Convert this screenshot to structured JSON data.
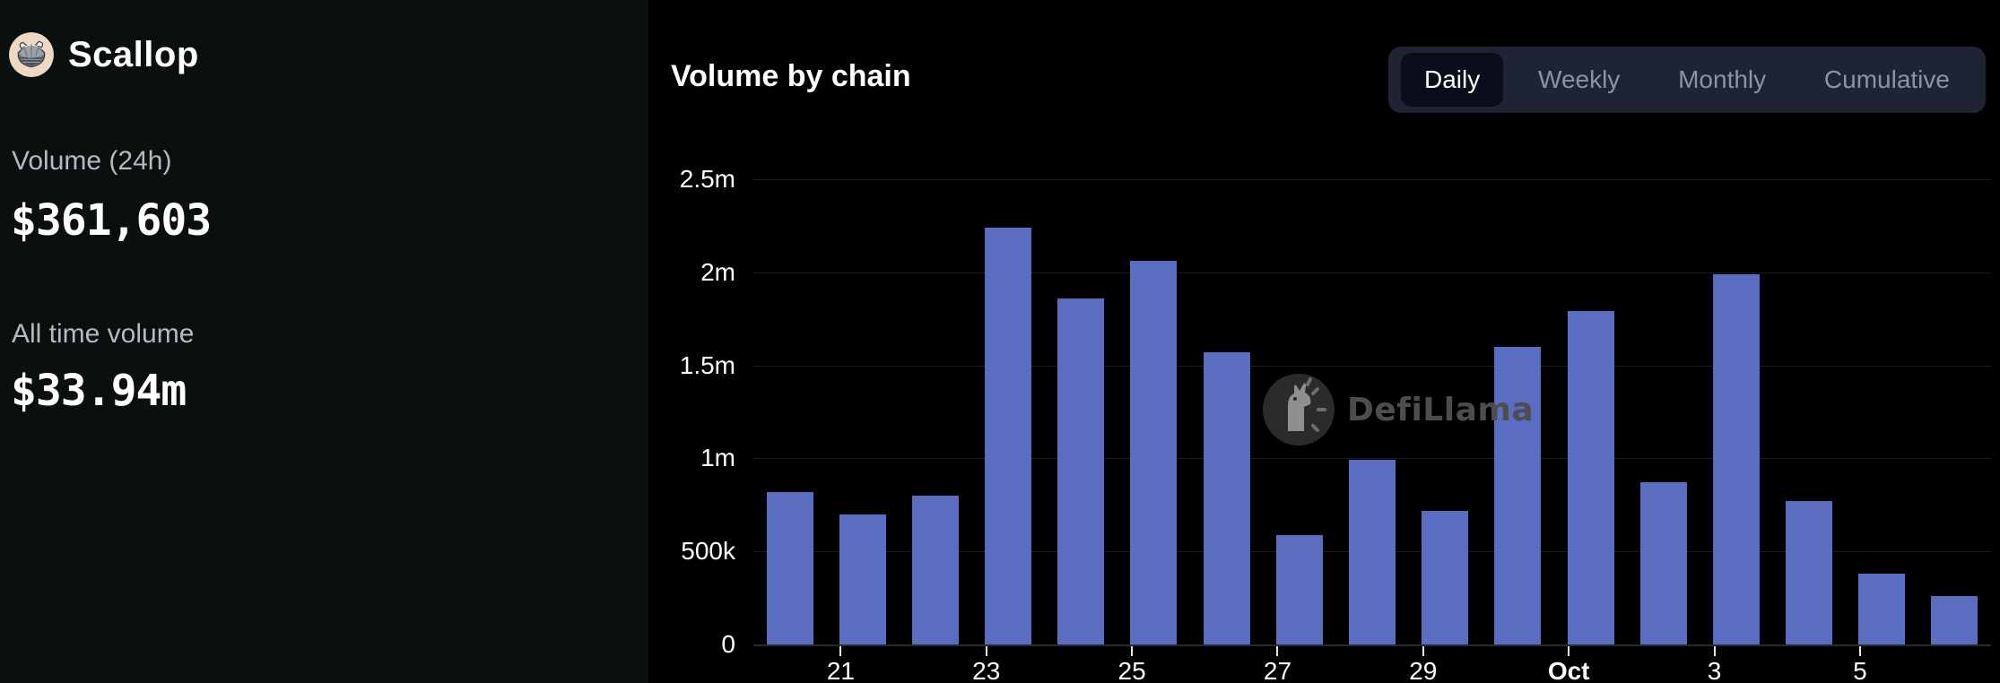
{
  "app": {
    "protocol_name": "Scallop"
  },
  "stats": {
    "volume_24h_label": "Volume (24h)",
    "volume_24h_value": "$361,603",
    "all_time_label": "All time volume",
    "all_time_value": "$33.94m"
  },
  "chart": {
    "title": "Volume by chain",
    "tabs": [
      {
        "label": "Daily",
        "active": true
      },
      {
        "label": "Weekly",
        "active": false
      },
      {
        "label": "Monthly",
        "active": false
      },
      {
        "label": "Cumulative",
        "active": false
      }
    ]
  },
  "watermark": {
    "text": "DefiLlama"
  },
  "colors": {
    "bar": "#5b6dc1",
    "left_panel_bg": "#0b0f0e",
    "chart_bg": "#000000",
    "toggle_bg": "#1e2433",
    "active_tab_bg": "#0a0e1b",
    "muted_text": "#b3bac1"
  },
  "chart_data": {
    "type": "bar",
    "title": "Volume by chain",
    "unit": "USD",
    "categories": [
      "Sep 20",
      "Sep 21",
      "Sep 22",
      "Sep 23",
      "Sep 24",
      "Sep 25",
      "Sep 26",
      "Sep 27",
      "Sep 28",
      "Sep 29",
      "Sep 30",
      "Oct 1",
      "Oct 2",
      "Oct 3",
      "Oct 4",
      "Oct 5",
      "Oct 6"
    ],
    "values": [
      820000,
      700000,
      800000,
      2240000,
      1860000,
      2060000,
      1570000,
      590000,
      990000,
      720000,
      1600000,
      1790000,
      870000,
      1990000,
      770000,
      380000,
      260000
    ],
    "ylim": [
      0,
      2500000
    ],
    "ylabel": "",
    "xlabel": "",
    "grid": "horizontal",
    "legend_position": "none",
    "bar_color": "#5b6dc1",
    "y_ticks": [
      {
        "label": "0",
        "value": 0
      },
      {
        "label": "500k",
        "value": 500000
      },
      {
        "label": "1m",
        "value": 1000000
      },
      {
        "label": "1.5m",
        "value": 1500000
      },
      {
        "label": "2m",
        "value": 2000000
      },
      {
        "label": "2.5m",
        "value": 2500000
      }
    ],
    "x_ticks": [
      {
        "index": 1,
        "label": "21",
        "bold": false
      },
      {
        "index": 3,
        "label": "23",
        "bold": false
      },
      {
        "index": 5,
        "label": "25",
        "bold": false
      },
      {
        "index": 7,
        "label": "27",
        "bold": false
      },
      {
        "index": 9,
        "label": "29",
        "bold": false
      },
      {
        "index": 11,
        "label": "Oct",
        "bold": true
      },
      {
        "index": 13,
        "label": "3",
        "bold": false
      },
      {
        "index": 15,
        "label": "5",
        "bold": false
      }
    ]
  }
}
